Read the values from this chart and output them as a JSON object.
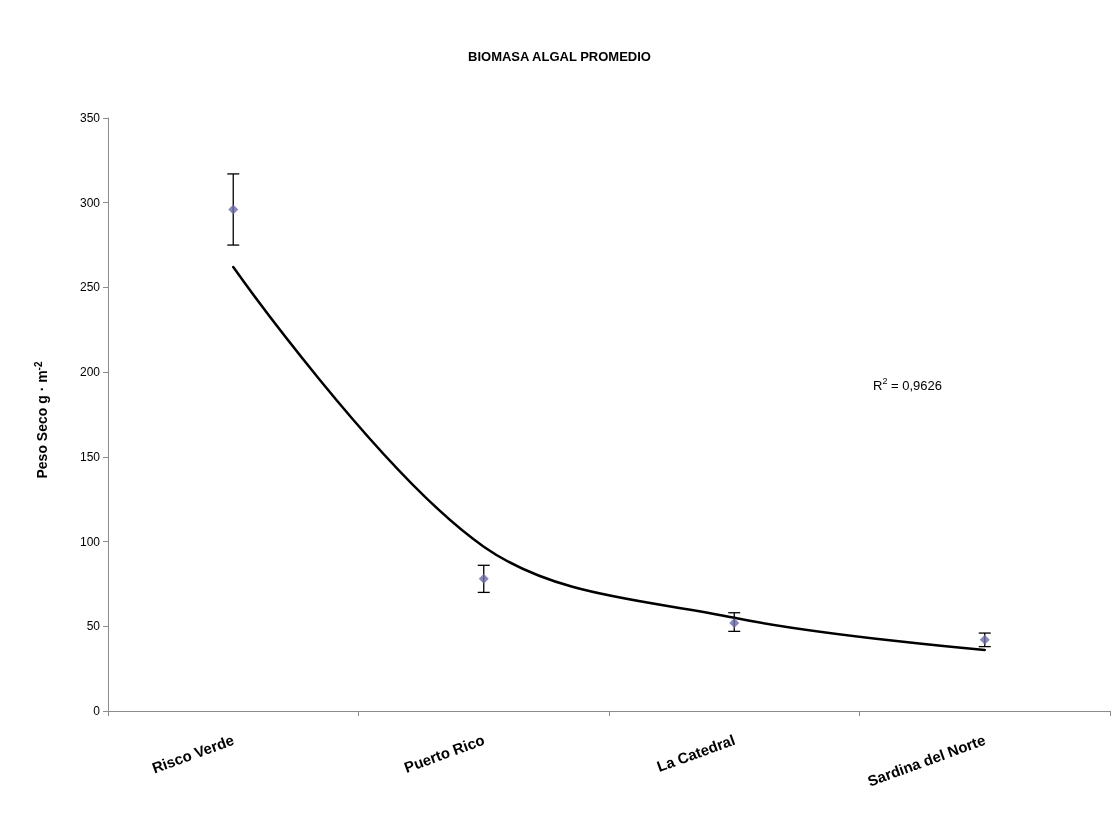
{
  "chart_data": {
    "type": "scatter",
    "title": "BIOMASA ALGAL PROMEDIO",
    "ylabel": "Peso Seco g · m$^{-2}$",
    "categories": [
      "Risco Verde",
      "Puerto Rico",
      "La Catedral",
      "Sardina del Norte"
    ],
    "series": [
      {
        "color": "#6b6ba8",
        "marker": "diamond",
        "values": [
          296,
          78,
          52,
          42
        ],
        "errors": [
          [
            275,
            317
          ],
          [
            70,
            86
          ],
          [
            47,
            58
          ],
          [
            38,
            46
          ]
        ]
      },
      {
        "type": "line",
        "color": "#000000",
        "marker": "none",
        "values": [
          262,
          97,
          55,
          36
        ]
      }
    ],
    "annotations": [
      "R$^{2}$ = 0,9626"
    ],
    "ylim": [
      0,
      350
    ],
    "yticks": [
      0,
      50,
      100,
      150,
      200,
      250,
      300,
      350
    ],
    "grid": false
  }
}
